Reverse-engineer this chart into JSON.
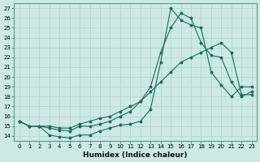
{
  "xlabel": "Humidex (Indice chaleur)",
  "background_color": "#cce9e5",
  "line_color": "#1a6b5a",
  "grid_color": "#b0d8d3",
  "xlim": [
    -0.5,
    23.5
  ],
  "ylim": [
    13.5,
    27.5
  ],
  "xticks": [
    0,
    1,
    2,
    3,
    4,
    5,
    6,
    7,
    8,
    9,
    10,
    11,
    12,
    13,
    14,
    15,
    16,
    17,
    18,
    19,
    20,
    21,
    22,
    23
  ],
  "yticks": [
    14,
    15,
    16,
    17,
    18,
    19,
    20,
    21,
    22,
    23,
    24,
    25,
    26,
    27
  ],
  "line1_x": [
    0,
    1,
    2,
    3,
    4,
    5,
    6,
    7,
    8,
    9,
    10,
    11,
    12,
    13,
    14,
    15,
    16,
    17,
    18,
    19,
    20,
    21,
    22,
    23
  ],
  "line1_y": [
    15.5,
    15.0,
    15.0,
    14.1,
    13.9,
    13.8,
    14.1,
    14.1,
    14.5,
    14.8,
    15.1,
    15.2,
    15.5,
    16.7,
    21.5,
    27.0,
    25.8,
    25.3,
    25.0,
    20.5,
    19.2,
    18.0,
    19.0,
    19.0
  ],
  "line2_x": [
    0,
    1,
    2,
    3,
    4,
    5,
    6,
    7,
    8,
    9,
    10,
    11,
    12,
    13,
    14,
    15,
    16,
    17,
    18,
    19,
    20,
    21,
    22,
    23
  ],
  "line2_y": [
    15.5,
    15.0,
    15.0,
    14.8,
    14.6,
    14.5,
    15.0,
    15.0,
    15.2,
    15.5,
    16.0,
    16.5,
    17.5,
    19.0,
    22.5,
    25.0,
    26.5,
    26.0,
    23.5,
    22.2,
    22.0,
    19.5,
    18.0,
    18.5
  ],
  "line3_x": [
    0,
    1,
    2,
    3,
    4,
    5,
    6,
    7,
    8,
    9,
    10,
    11,
    12,
    13,
    14,
    15,
    16,
    17,
    18,
    19,
    20,
    21,
    22,
    23
  ],
  "line3_y": [
    15.5,
    15.0,
    15.0,
    15.0,
    14.8,
    14.8,
    15.2,
    15.5,
    15.8,
    16.0,
    16.5,
    17.0,
    17.5,
    18.5,
    19.5,
    20.5,
    21.5,
    22.0,
    22.5,
    23.0,
    23.5,
    22.5,
    18.2,
    18.2
  ]
}
